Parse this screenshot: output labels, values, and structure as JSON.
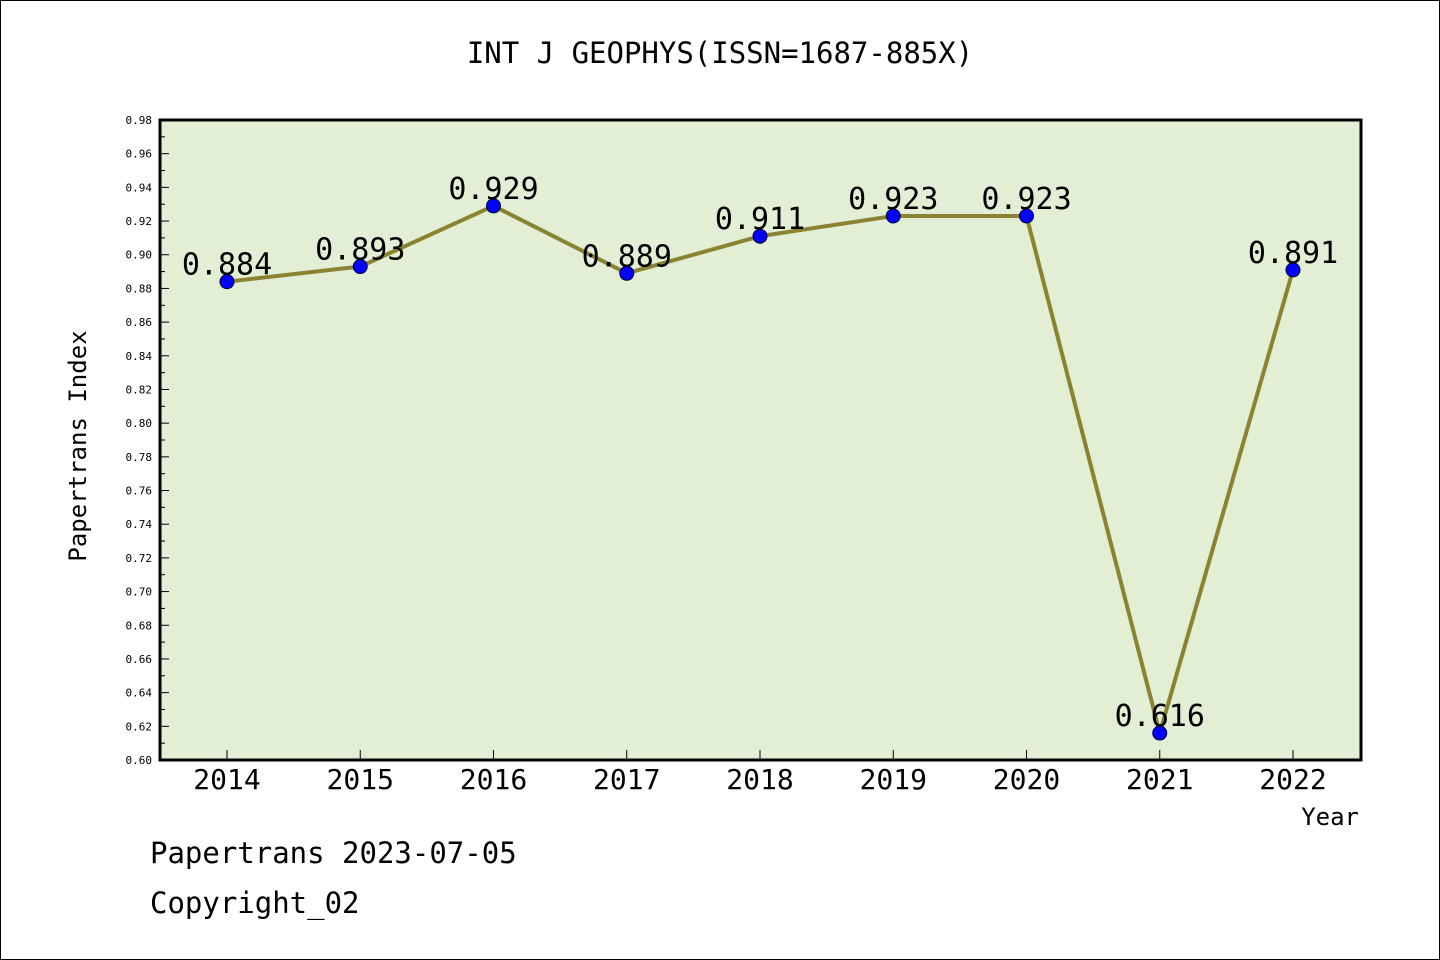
{
  "chart_data": {
    "type": "line",
    "title": "INT J GEOPHYS(ISSN=1687-885X)",
    "xlabel": "Year",
    "ylabel": "Papertrans Index",
    "categories": [
      "2014",
      "2015",
      "2016",
      "2017",
      "2018",
      "2019",
      "2020",
      "2021",
      "2022"
    ],
    "values": [
      0.884,
      0.893,
      0.929,
      0.889,
      0.911,
      0.923,
      0.923,
      0.616,
      0.891
    ],
    "data_labels": [
      "0.884",
      "0.893",
      "0.929",
      "0.889",
      "0.911",
      "0.923",
      "0.923",
      "0.616",
      "0.891"
    ],
    "ylim": [
      0.6,
      0.98
    ],
    "yticks": [
      "0.60",
      "0.62",
      "0.64",
      "0.66",
      "0.68",
      "0.70",
      "0.72",
      "0.74",
      "0.76",
      "0.78",
      "0.80",
      "0.82",
      "0.84",
      "0.86",
      "0.88",
      "0.90",
      "0.92",
      "0.94",
      "0.96",
      "0.98"
    ],
    "grid": false,
    "colors": {
      "plot_bg": "#e2efd5",
      "line": "#8b8232",
      "marker": "#0000ff"
    }
  },
  "footer": {
    "line1": "Papertrans 2023-07-05",
    "line2": "Copyright_02"
  }
}
